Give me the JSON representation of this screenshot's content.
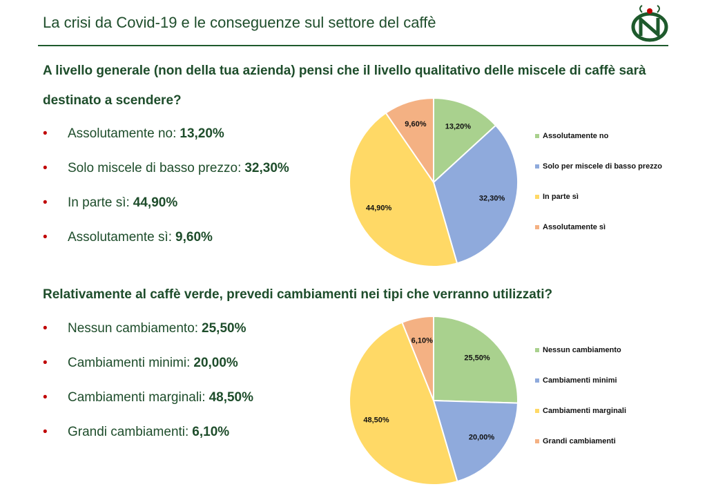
{
  "title": "La crisi da Covid-19 e le conseguenze sul settore del caffè",
  "sections": [
    {
      "question": "A livello generale (non della tua azienda) pensi che il livello qualitativo delle miscele di caffè sarà destinato a scendere?",
      "bullets": [
        "Assolutamente no:",
        "Solo miscele di basso prezzo:",
        "In parte sì:",
        "Assolutamente sì:"
      ]
    },
    {
      "question": "Relativamente al caffè verde, prevedi cambiamenti nei tipi che verranno utilizzati?",
      "bullets": [
        "Nessun cambiamento:",
        "Cambiamenti minimi:",
        "Cambiamenti marginali:",
        "Grandi cambiamenti:"
      ]
    }
  ],
  "chart_data": [
    {
      "type": "pie",
      "categories": [
        "Assolutamente no",
        "Solo per miscele di basso prezzo",
        "In parte sì",
        "Assolutamente sì"
      ],
      "values": [
        13.2,
        32.3,
        44.9,
        9.6
      ],
      "value_labels": [
        "13,20%",
        "32,30%",
        "44,90%",
        "9,60%"
      ],
      "colors": [
        "#a9d18e",
        "#8faadc",
        "#ffd966",
        "#f4b183"
      ],
      "legend": "right"
    },
    {
      "type": "pie",
      "categories": [
        "Nessun cambiamento",
        "Cambiamenti minimi",
        "Cambiamenti marginali",
        "Grandi cambiamenti"
      ],
      "values": [
        25.5,
        20.0,
        48.5,
        6.1
      ],
      "value_labels": [
        "25,50%",
        "20,00%",
        "48,50%",
        "6,10%"
      ],
      "colors": [
        "#a9d18e",
        "#8faadc",
        "#ffd966",
        "#f4b183"
      ],
      "legend": "right"
    }
  ]
}
